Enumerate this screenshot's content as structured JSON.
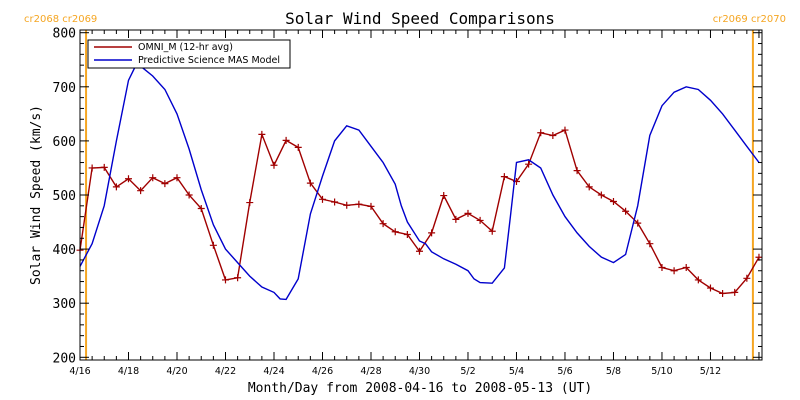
{
  "chart_data": {
    "type": "line",
    "title": "Solar Wind Speed Comparisons",
    "xlabel": "Month/Day from 2008-04-16 to 2008-05-13 (UT)",
    "ylabel": "Solar Wind Speed (km/s)",
    "xlim": [
      "2008-04-16 00:00",
      "2008-05-14 03:00"
    ],
    "ylim": [
      195,
      805
    ],
    "x_tick_labels": [
      "4/16",
      "4/18",
      "4/20",
      "4/22",
      "4/24",
      "4/26",
      "4/28",
      "4/30",
      "5/2",
      "5/4",
      "5/6",
      "5/8",
      "5/10",
      "5/12"
    ],
    "y_tick_labels": [
      "200",
      "300",
      "400",
      "500",
      "600",
      "700",
      "800"
    ],
    "grid": false,
    "legend_position": "top-left",
    "carrington_markers": [
      {
        "x": "2008-04-16 06:00",
        "label": "cr2068 cr2069",
        "color": "#f5a623"
      },
      {
        "x": "2008-05-13 18:00",
        "label": "cr2069 cr2070",
        "color": "#f5a623"
      }
    ],
    "series": [
      {
        "name": "OMNI_M (12-hr avg)",
        "color": "#a00000",
        "marker": "plus",
        "x": [
          "2008-04-16 00:00",
          "2008-04-16 12:00",
          "2008-04-17 00:00",
          "2008-04-17 12:00",
          "2008-04-18 00:00",
          "2008-04-18 12:00",
          "2008-04-19 00:00",
          "2008-04-19 12:00",
          "2008-04-20 00:00",
          "2008-04-20 12:00",
          "2008-04-21 00:00",
          "2008-04-21 12:00",
          "2008-04-22 00:00",
          "2008-04-22 12:00",
          "2008-04-23 00:00",
          "2008-04-23 12:00",
          "2008-04-24 00:00",
          "2008-04-24 12:00",
          "2008-04-25 00:00",
          "2008-04-25 12:00",
          "2008-04-26 00:00",
          "2008-04-26 12:00",
          "2008-04-27 00:00",
          "2008-04-27 12:00",
          "2008-04-28 00:00",
          "2008-04-28 12:00",
          "2008-04-29 00:00",
          "2008-04-29 12:00",
          "2008-04-30 00:00",
          "2008-04-30 12:00",
          "2008-05-01 00:00",
          "2008-05-01 12:00",
          "2008-05-02 00:00",
          "2008-05-02 12:00",
          "2008-05-03 00:00",
          "2008-05-03 12:00",
          "2008-05-04 00:00",
          "2008-05-04 12:00",
          "2008-05-05 00:00",
          "2008-05-05 12:00",
          "2008-05-06 00:00",
          "2008-05-06 12:00",
          "2008-05-07 00:00",
          "2008-05-07 12:00",
          "2008-05-08 00:00",
          "2008-05-08 12:00",
          "2008-05-09 00:00",
          "2008-05-09 12:00",
          "2008-05-10 00:00",
          "2008-05-10 12:00",
          "2008-05-11 00:00",
          "2008-05-11 12:00",
          "2008-05-12 00:00",
          "2008-05-12 12:00",
          "2008-05-13 00:00",
          "2008-05-13 12:00",
          "2008-05-14 00:00"
        ],
        "values": [
          398,
          550,
          551,
          515,
          530,
          508,
          532,
          521,
          532,
          500,
          475,
          407,
          343,
          347,
          486,
          612,
          555,
          601,
          588,
          522,
          492,
          487,
          481,
          483,
          479,
          447,
          432,
          427,
          396,
          430,
          499,
          455,
          466,
          453,
          433,
          534,
          525,
          557,
          615,
          610,
          620,
          545,
          515,
          500,
          488,
          470,
          448,
          410,
          366,
          360,
          366,
          343,
          328,
          318,
          320,
          346,
          385
        ]
      },
      {
        "name": "Predictive Science MAS Model",
        "color": "#0000cc",
        "marker": "none",
        "x": [
          "2008-04-16 00:00",
          "2008-04-16 12:00",
          "2008-04-17 00:00",
          "2008-04-17 12:00",
          "2008-04-18 00:00",
          "2008-04-18 06:00",
          "2008-04-18 12:00",
          "2008-04-19 00:00",
          "2008-04-19 12:00",
          "2008-04-20 00:00",
          "2008-04-20 12:00",
          "2008-04-21 00:00",
          "2008-04-21 12:00",
          "2008-04-22 00:00",
          "2008-04-22 12:00",
          "2008-04-23 00:00",
          "2008-04-23 06:00",
          "2008-04-23 12:00",
          "2008-04-24 00:00",
          "2008-04-24 06:00",
          "2008-04-24 12:00",
          "2008-04-25 00:00",
          "2008-04-25 12:00",
          "2008-04-26 00:00",
          "2008-04-26 12:00",
          "2008-04-27 00:00",
          "2008-04-27 12:00",
          "2008-04-28 00:00",
          "2008-04-28 12:00",
          "2008-04-29 00:00",
          "2008-04-29 06:00",
          "2008-04-29 12:00",
          "2008-04-30 00:00",
          "2008-04-30 06:00",
          "2008-04-30 12:00",
          "2008-05-01 00:00",
          "2008-05-01 12:00",
          "2008-05-02 00:00",
          "2008-05-02 06:00",
          "2008-05-02 12:00",
          "2008-05-03 00:00",
          "2008-05-03 12:00",
          "2008-05-03 18:00",
          "2008-05-04 00:00",
          "2008-05-04 12:00",
          "2008-05-05 00:00",
          "2008-05-05 12:00",
          "2008-05-06 00:00",
          "2008-05-06 12:00",
          "2008-05-07 00:00",
          "2008-05-07 12:00",
          "2008-05-08 00:00",
          "2008-05-08 12:00",
          "2008-05-09 00:00",
          "2008-05-09 12:00",
          "2008-05-10 00:00",
          "2008-05-10 12:00",
          "2008-05-11 00:00",
          "2008-05-11 12:00",
          "2008-05-12 00:00",
          "2008-05-12 12:00",
          "2008-05-13 00:00",
          "2008-05-13 12:00",
          "2008-05-14 00:00"
        ],
        "values": [
          368,
          410,
          480,
          600,
          712,
          735,
          738,
          720,
          695,
          650,
          585,
          510,
          445,
          400,
          375,
          350,
          340,
          330,
          320,
          308,
          307,
          345,
          465,
          535,
          600,
          628,
          620,
          590,
          560,
          520,
          480,
          450,
          415,
          410,
          395,
          382,
          372,
          360,
          345,
          338,
          337,
          365,
          460,
          560,
          565,
          550,
          500,
          460,
          430,
          405,
          385,
          375,
          390,
          480,
          610,
          665,
          690,
          700,
          695,
          675,
          650,
          620,
          590,
          560
        ]
      }
    ]
  }
}
